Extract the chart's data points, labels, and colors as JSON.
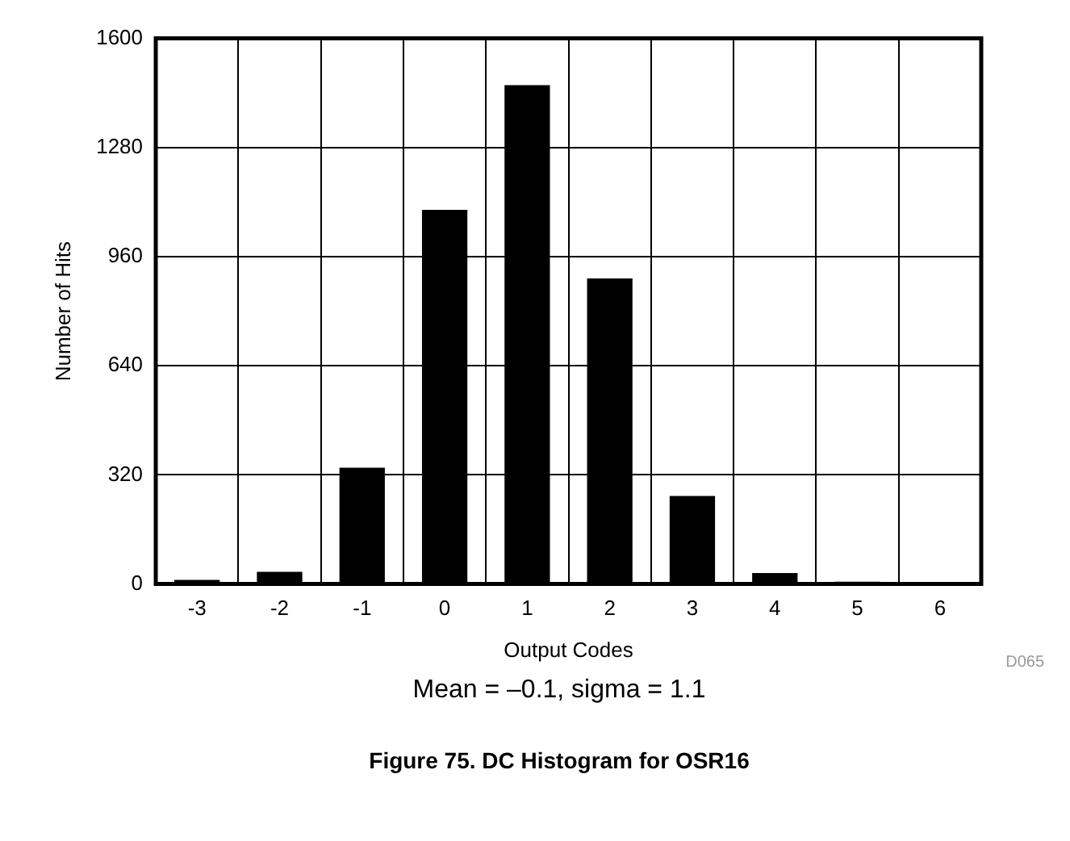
{
  "chart_data": {
    "type": "bar",
    "title": "Figure 75. DC Histogram for OSR16",
    "xlabel": "Output Codes",
    "ylabel": "Number of Hits",
    "categories": [
      "-3",
      "-2",
      "-1",
      "0",
      "1",
      "2",
      "3",
      "4",
      "5",
      "6"
    ],
    "values": [
      12,
      36,
      341,
      1097,
      1463,
      896,
      258,
      32,
      7,
      3
    ],
    "color": "#000000",
    "ylim": [
      0,
      1600
    ],
    "yticks": [
      0,
      320,
      640,
      960,
      1280,
      1600
    ],
    "grid": true,
    "legend": false,
    "annotations": [
      "D065",
      "Mean = –0.1, sigma = 1.1"
    ]
  }
}
